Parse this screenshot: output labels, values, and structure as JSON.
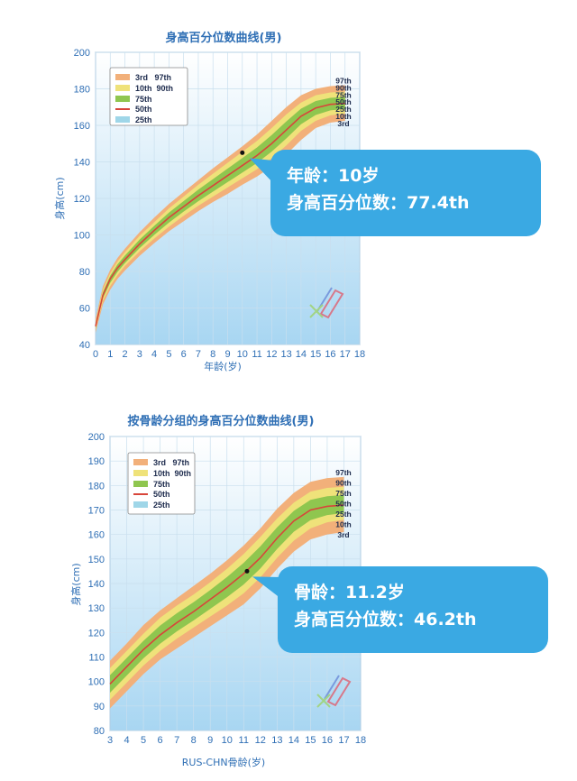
{
  "colors": {
    "band_outer": "#f2b07a",
    "band_mid": "#efe27a",
    "band_inner": "#8fc64f",
    "median": "#d8453a",
    "band_25": "#9fd6e8",
    "axis_text": "#2f6fb5",
    "callout_bg": "#3aa9e3",
    "bg_top": "#ffffff",
    "bg_bottom": "#a8d6f2"
  },
  "chart_data": [
    {
      "type": "area",
      "title": "身高百分位数曲线(男)",
      "xlabel": "年龄(岁)",
      "ylabel": "身高(cm)",
      "xlim": [
        0,
        18
      ],
      "ylim": [
        40,
        200
      ],
      "xticks": [
        "0",
        "1",
        "2",
        "3",
        "4",
        "5",
        "6",
        "7",
        "8",
        "9",
        "10",
        "11",
        "12",
        "13",
        "14",
        "15",
        "16",
        "17",
        "18"
      ],
      "yticks": [
        "40",
        "60",
        "80",
        "100",
        "120",
        "140",
        "160",
        "180",
        "200"
      ],
      "grid": true,
      "legend_position": "top-left",
      "legend": [
        {
          "label": "3rd   97th",
          "color_key": "band_outer"
        },
        {
          "label": "10th  90th",
          "color_key": "band_mid"
        },
        {
          "label": "75th",
          "color_key": "band_inner"
        },
        {
          "label": "50th",
          "color_key": "median"
        },
        {
          "label": "25th",
          "color_key": "band_25"
        }
      ],
      "percentile_labels": [
        "97th",
        "90th",
        "75th",
        "50th",
        "25th",
        "10th",
        "3rd"
      ],
      "x": [
        0,
        0.5,
        1,
        1.5,
        2,
        3,
        4,
        5,
        6,
        7,
        8,
        9,
        10,
        11,
        12,
        13,
        14,
        15,
        16,
        17
      ],
      "series": [
        {
          "name": "3rd",
          "values": [
            46.5,
            62,
            70,
            76,
            80.5,
            88.5,
            95.5,
            102,
            107.5,
            113,
            118,
            122.5,
            127.5,
            132,
            137.5,
            144,
            152,
            158.5,
            161.5,
            162.5
          ]
        },
        {
          "name": "10th",
          "values": [
            48,
            64,
            72,
            78,
            83,
            91,
            98,
            104.5,
            110.5,
            116,
            121,
            126,
            131,
            136,
            142,
            149,
            157,
            162.5,
            165.5,
            166.5
          ]
        },
        {
          "name": "50th",
          "values": [
            50,
            67,
            76,
            82,
            86.5,
            95,
            102.5,
            109.5,
            115.5,
            121.5,
            127,
            132.5,
            138,
            143.5,
            150,
            157.5,
            165,
            169.5,
            171.5,
            172
          ]
        },
        {
          "name": "90th",
          "values": [
            52.5,
            70,
            79,
            85.5,
            90.5,
            99.5,
            107,
            114.5,
            121,
            127.5,
            133.5,
            139.5,
            145.5,
            151.5,
            158.5,
            166,
            172.5,
            176.5,
            178,
            178.5
          ]
        },
        {
          "name": "97th",
          "values": [
            54,
            72,
            81,
            87.5,
            92.5,
            101.5,
            109.5,
            117,
            123.5,
            130,
            136.5,
            142.5,
            148.5,
            155,
            162.5,
            170,
            176.5,
            180,
            181.5,
            182
          ]
        }
      ],
      "marker": {
        "x": 10,
        "y": 145
      },
      "callout": {
        "line1": "年龄：10岁",
        "line2": "身高百分位数：77.4th"
      }
    },
    {
      "type": "area",
      "title": "按骨龄分组的身高百分位数曲线(男)",
      "xlabel": "RUS-CHN骨龄(岁)",
      "ylabel": "身高(cm)",
      "xlim": [
        3,
        18
      ],
      "ylim": [
        80,
        200
      ],
      "xticks": [
        "3",
        "4",
        "5",
        "6",
        "7",
        "8",
        "9",
        "10",
        "11",
        "12",
        "13",
        "14",
        "15",
        "16",
        "17",
        "18"
      ],
      "yticks": [
        "80",
        "90",
        "100",
        "110",
        "120",
        "130",
        "140",
        "150",
        "160",
        "170",
        "180",
        "190",
        "200"
      ],
      "grid": true,
      "legend_position": "top-left",
      "legend": [
        {
          "label": "3rd   97th",
          "color_key": "band_outer"
        },
        {
          "label": "10th  90th",
          "color_key": "band_mid"
        },
        {
          "label": "75th",
          "color_key": "band_inner"
        },
        {
          "label": "50th",
          "color_key": "median"
        },
        {
          "label": "25th",
          "color_key": "band_25"
        }
      ],
      "percentile_labels": [
        "97th",
        "90th",
        "75th",
        "50th",
        "25th",
        "10th",
        "3rd"
      ],
      "x": [
        3,
        4,
        5,
        6,
        7,
        8,
        9,
        10,
        11,
        12,
        13,
        14,
        15,
        16,
        17
      ],
      "series": [
        {
          "name": "3rd",
          "values": [
            89,
            96,
            103,
            109,
            113.5,
            118,
            122.5,
            127,
            131.5,
            138,
            146,
            153,
            158,
            160,
            161
          ]
        },
        {
          "name": "10th",
          "values": [
            92.5,
            99.5,
            106.5,
            112.5,
            117.5,
            122,
            126.5,
            131,
            136,
            142.5,
            150.5,
            157.5,
            162.5,
            165,
            166
          ]
        },
        {
          "name": "50th",
          "values": [
            99,
            106,
            113,
            119,
            124,
            128.5,
            133.5,
            138.5,
            144,
            150.5,
            158.5,
            165.5,
            170,
            171.5,
            172
          ]
        },
        {
          "name": "90th",
          "values": [
            105.5,
            112.5,
            119.5,
            126,
            131,
            135.5,
            140.5,
            146,
            152,
            159,
            166.5,
            173,
            177.5,
            179,
            179.5
          ]
        },
        {
          "name": "97th",
          "values": [
            108.5,
            115.5,
            123,
            129,
            134,
            139,
            144,
            149.5,
            155.5,
            162.5,
            170.5,
            177,
            181.5,
            183,
            183.5
          ]
        }
      ],
      "marker": {
        "x": 11.2,
        "y": 145
      },
      "callout": {
        "line1": "骨龄：11.2岁",
        "line2": "身高百分位数：46.2th"
      }
    }
  ]
}
